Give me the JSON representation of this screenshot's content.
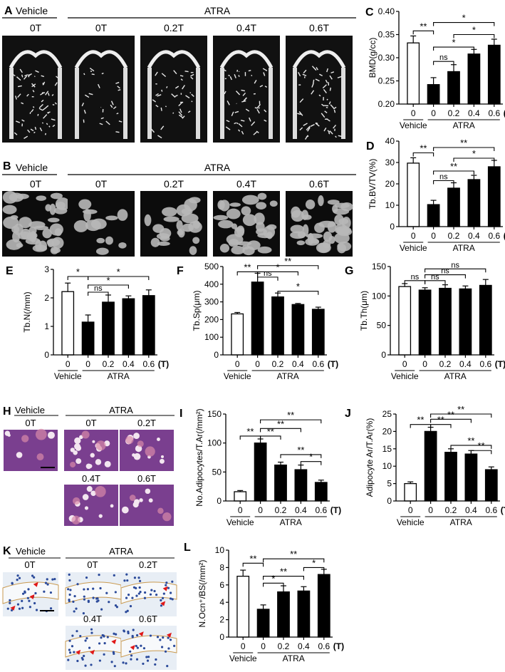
{
  "figure": {
    "groups": [
      "0",
      "0",
      "0.2",
      "0.4",
      "0.6"
    ],
    "unit_T": "(T)",
    "group_vehicle": "Vehicle",
    "group_atra": "ATRA",
    "dose_labels": [
      "0T",
      "0T",
      "0.2T",
      "0.4T",
      "0.6T"
    ],
    "colors": {
      "vehicle": "#ffffff",
      "atra": "#000000",
      "bg_scan": "#111111",
      "he_tissue": "#7a3f8f",
      "ihc_bg": "#e8eef5",
      "arrow": "#e01818"
    }
  },
  "panels": {
    "A": {
      "letter": "A",
      "vehicle": "Vehicle",
      "atra": "ATRA",
      "labels": [
        "0T",
        "0T",
        "0.2T",
        "0.4T",
        "0.6T"
      ]
    },
    "B": {
      "letter": "B",
      "vehicle": "Vehicle",
      "atra": "ATRA",
      "labels": [
        "0T",
        "0T",
        "0.2T",
        "0.4T",
        "0.6T"
      ]
    },
    "H": {
      "letter": "H",
      "vehicle": "Vehicle",
      "atra": "ATRA",
      "labels": [
        "0T",
        "0T",
        "0.2T",
        "0.4T",
        "0.6T"
      ]
    },
    "K": {
      "letter": "K",
      "vehicle": "Vehicle",
      "atra": "ATRA",
      "labels": [
        "0T",
        "0T",
        "0.2T",
        "0.4T",
        "0.6T"
      ]
    }
  },
  "chart_data": [
    {
      "id": "C",
      "type": "bar",
      "letter": "C",
      "ylabel": "BMD(g/cc)",
      "ylim": [
        0.2,
        0.4
      ],
      "yticks": [
        "0.20",
        "0.25",
        "0.30",
        "0.35",
        "0.40"
      ],
      "tickvals": [
        0.2,
        0.25,
        0.3,
        0.35,
        0.4
      ],
      "values": [
        0.332,
        0.242,
        0.27,
        0.308,
        0.327
      ],
      "errors": [
        0.015,
        0.015,
        0.015,
        0.01,
        0.013
      ],
      "show_T": true,
      "sig": [
        {
          "from": 0,
          "to": 1,
          "label": "**",
          "y": 0.358
        },
        {
          "from": 1,
          "to": 2,
          "label": "ns",
          "y": 0.292
        },
        {
          "from": 1,
          "to": 3,
          "label": "*",
          "y": 0.323
        },
        {
          "from": 1,
          "to": 4,
          "label": "*",
          "y": 0.376
        },
        {
          "from": 2,
          "to": 4,
          "label": "*",
          "y": 0.35
        }
      ]
    },
    {
      "id": "D",
      "type": "bar",
      "letter": "D",
      "ylabel": "Tb.BV/TV(%)",
      "ylim": [
        0,
        40
      ],
      "yticks": [
        "0",
        "10",
        "20",
        "30",
        "40"
      ],
      "tickvals": [
        0,
        10,
        20,
        30,
        40
      ],
      "values": [
        29.7,
        10.3,
        18.0,
        22.0,
        28.0
      ],
      "errors": [
        2.5,
        2.0,
        2.5,
        2.0,
        3.0
      ],
      "show_T": true,
      "sig": [
        {
          "from": 0,
          "to": 1,
          "label": "**",
          "y": 34.5
        },
        {
          "from": 1,
          "to": 2,
          "label": "ns",
          "y": 21.5
        },
        {
          "from": 1,
          "to": 3,
          "label": "**",
          "y": 26.0
        },
        {
          "from": 1,
          "to": 4,
          "label": "**",
          "y": 37.0
        },
        {
          "from": 2,
          "to": 4,
          "label": "*",
          "y": 32.0
        }
      ]
    },
    {
      "id": "E",
      "type": "bar",
      "letter": "E",
      "ylabel": "Tb.N(/mm)",
      "ylim": [
        0,
        3
      ],
      "yticks": [
        "0",
        "1",
        "2",
        "3"
      ],
      "tickvals": [
        0,
        1,
        2,
        3
      ],
      "values": [
        2.22,
        1.15,
        1.85,
        1.97,
        2.08
      ],
      "errors": [
        0.3,
        0.25,
        0.25,
        0.1,
        0.2
      ],
      "show_T": true,
      "sig": [
        {
          "from": 0,
          "to": 1,
          "label": "*",
          "y": 2.75
        },
        {
          "from": 1,
          "to": 2,
          "label": "ns",
          "y": 2.2
        },
        {
          "from": 1,
          "to": 3,
          "label": "*",
          "y": 2.45
        },
        {
          "from": 1,
          "to": 4,
          "label": "*",
          "y": 2.75
        }
      ]
    },
    {
      "id": "F",
      "type": "bar",
      "letter": "F",
      "ylabel": "Tb.Sp(μm)",
      "ylim": [
        0,
        500
      ],
      "yticks": [
        "0",
        "100",
        "200",
        "300",
        "400",
        "500"
      ],
      "tickvals": [
        0,
        100,
        200,
        300,
        400,
        500
      ],
      "values": [
        232,
        412,
        328,
        285,
        258
      ],
      "errors": [
        8,
        50,
        22,
        6,
        12
      ],
      "show_T": true,
      "sig": [
        {
          "from": 0,
          "to": 1,
          "label": "**",
          "y": 470
        },
        {
          "from": 1,
          "to": 2,
          "label": "ns",
          "y": 440
        },
        {
          "from": 1,
          "to": 3,
          "label": "*",
          "y": 470
        },
        {
          "from": 1,
          "to": 4,
          "label": "**",
          "y": 505
        },
        {
          "from": 2,
          "to": 4,
          "label": "*",
          "y": 360
        }
      ]
    },
    {
      "id": "G",
      "type": "bar",
      "letter": "G",
      "ylabel": "Tb.Th(μm)",
      "ylim": [
        0,
        150
      ],
      "yticks": [
        "0",
        "50",
        "100",
        "150"
      ],
      "tickvals": [
        0,
        50,
        100,
        150
      ],
      "values": [
        116,
        110,
        113,
        112,
        118
      ],
      "errors": [
        5,
        4,
        6,
        5,
        10
      ],
      "show_T": true,
      "sig": [
        {
          "from": 0,
          "to": 1,
          "label": "ns",
          "y": 126
        },
        {
          "from": 1,
          "to": 2,
          "label": "ns",
          "y": 126
        },
        {
          "from": 1,
          "to": 3,
          "label": "ns",
          "y": 136
        },
        {
          "from": 1,
          "to": 4,
          "label": "ns",
          "y": 146
        }
      ]
    },
    {
      "id": "I",
      "type": "bar",
      "letter": "I",
      "ylabel": "No.Adipocytes/T.Ar(/mm²)",
      "ylim": [
        0,
        150
      ],
      "yticks": [
        "0",
        "50",
        "100",
        "150"
      ],
      "tickvals": [
        0,
        50,
        100,
        150
      ],
      "values": [
        16,
        100,
        62,
        54,
        32
      ],
      "errors": [
        2,
        7,
        5,
        8,
        4
      ],
      "show_T": true,
      "sig": [
        {
          "from": 0,
          "to": 1,
          "label": "**",
          "y": 112
        },
        {
          "from": 1,
          "to": 2,
          "label": "**",
          "y": 112
        },
        {
          "from": 1,
          "to": 3,
          "label": "**",
          "y": 125
        },
        {
          "from": 1,
          "to": 4,
          "label": "**",
          "y": 140
        },
        {
          "from": 2,
          "to": 4,
          "label": "**",
          "y": 80
        },
        {
          "from": 3,
          "to": 4,
          "label": "*",
          "y": 68
        }
      ]
    },
    {
      "id": "J",
      "type": "bar",
      "letter": "J",
      "ylabel": "Adipocyte Ar/T.Ar(%)",
      "ylim": [
        0,
        25
      ],
      "yticks": [
        "0",
        "5",
        "10",
        "15",
        "20",
        "25"
      ],
      "tickvals": [
        0,
        5,
        10,
        15,
        20,
        25
      ],
      "values": [
        5,
        20,
        14,
        13.5,
        9
      ],
      "errors": [
        0.5,
        1.2,
        1,
        1,
        0.8
      ],
      "show_T": true,
      "sig": [
        {
          "from": 0,
          "to": 1,
          "label": "**",
          "y": 22
        },
        {
          "from": 1,
          "to": 2,
          "label": "**",
          "y": 22
        },
        {
          "from": 1,
          "to": 3,
          "label": "**",
          "y": 23.5
        },
        {
          "from": 1,
          "to": 4,
          "label": "**",
          "y": 25
        },
        {
          "from": 2,
          "to": 4,
          "label": "**",
          "y": 16
        },
        {
          "from": 3,
          "to": 4,
          "label": "**",
          "y": 14.5
        }
      ]
    },
    {
      "id": "L",
      "type": "bar",
      "letter": "L",
      "ylabel": "N.Ocn⁺/BS(/mm²)",
      "ylim": [
        0,
        10
      ],
      "yticks": [
        "0",
        "2",
        "4",
        "6",
        "8",
        "10"
      ],
      "tickvals": [
        0,
        2,
        4,
        6,
        8,
        10
      ],
      "values": [
        7.0,
        3.2,
        5.2,
        5.3,
        7.2
      ],
      "errors": [
        0.7,
        0.5,
        0.7,
        0.5,
        0.6
      ],
      "show_T": true,
      "sig": [
        {
          "from": 0,
          "to": 1,
          "label": "**",
          "y": 8.5
        },
        {
          "from": 1,
          "to": 2,
          "label": "*",
          "y": 6.2
        },
        {
          "from": 1,
          "to": 3,
          "label": "**",
          "y": 7.0
        },
        {
          "from": 1,
          "to": 4,
          "label": "**",
          "y": 9.0
        },
        {
          "from": 3,
          "to": 4,
          "label": "*",
          "y": 8.0
        }
      ]
    }
  ]
}
